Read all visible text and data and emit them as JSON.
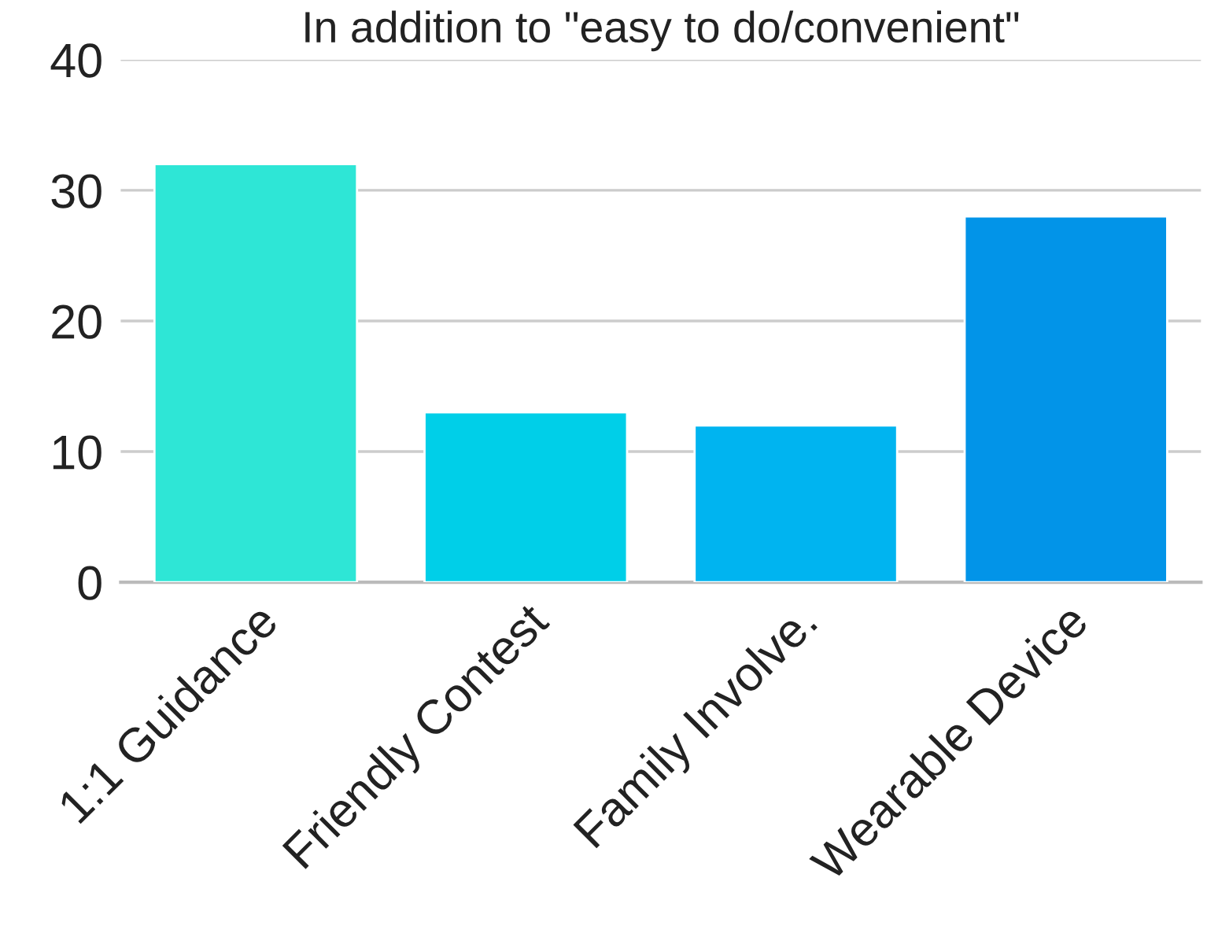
{
  "chart_data": {
    "type": "bar",
    "title": "In addition to \"easy to do/convenient\"",
    "categories": [
      "1:1 Guidance",
      "Friendly Contest",
      "Family Involve.",
      "Wearable Device"
    ],
    "values": [
      32,
      13,
      12,
      28
    ],
    "colors": [
      "#2ee6d6",
      "#00cfe8",
      "#00b4f0",
      "#0294e8"
    ],
    "ylim": [
      0,
      40
    ],
    "yticks": [
      0,
      10,
      20,
      30,
      40
    ],
    "grid": "y"
  }
}
